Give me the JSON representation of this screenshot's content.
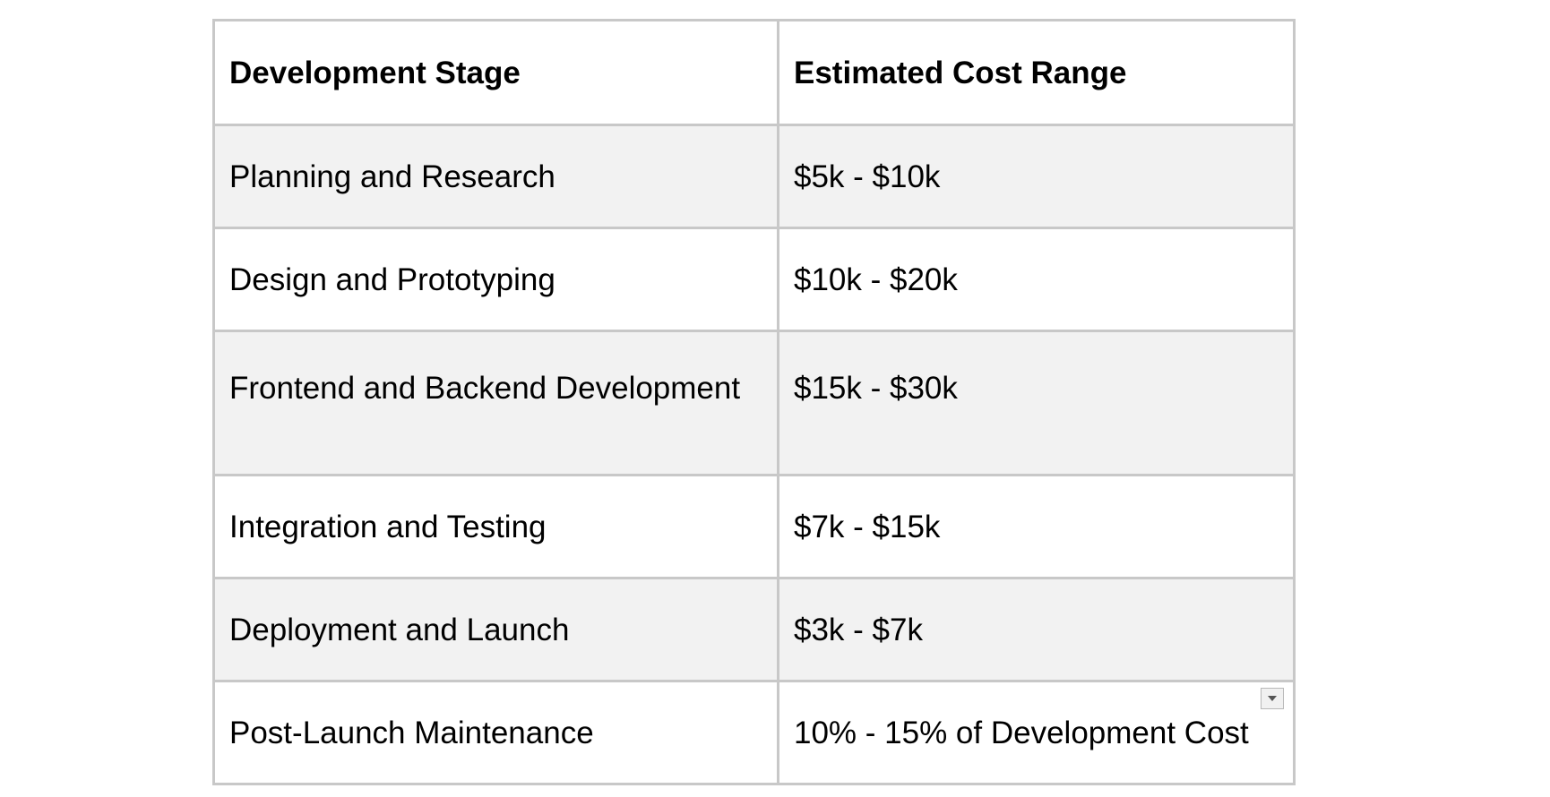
{
  "table": {
    "headers": {
      "stage": "Development Stage",
      "cost": "Estimated Cost Range"
    },
    "rows": [
      {
        "stage": "Planning and Research",
        "cost": "$5k - $10k"
      },
      {
        "stage": "Design and Prototyping",
        "cost": "$10k - $20k"
      },
      {
        "stage": "Frontend and Backend Development",
        "cost": "$15k - $30k"
      },
      {
        "stage": "Integration and Testing",
        "cost": "$7k - $15k"
      },
      {
        "stage": "Deployment and Launch",
        "cost": "$3k - $7k"
      },
      {
        "stage": "Post-Launch Maintenance",
        "cost": "10% - 15% of Development Cost"
      }
    ]
  },
  "icons": {
    "cell_dropdown": "chevron-down-icon"
  },
  "colors": {
    "border": "#c8c8c8",
    "shaded_row": "#f2f2f2",
    "text": "#000000"
  }
}
